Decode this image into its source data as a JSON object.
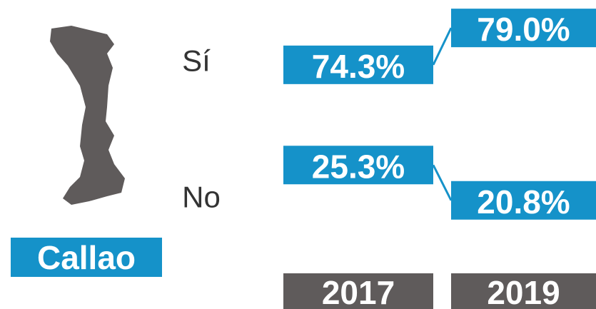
{
  "chart_data": {
    "type": "slope",
    "region": "Callao",
    "categories": [
      "2017",
      "2019"
    ],
    "color": "#1592c9",
    "year_color": "#5f5b5b",
    "series": [
      {
        "name": "Sí",
        "values": [
          74.3,
          79.0
        ],
        "value_labels": [
          "74.3%",
          "79.0%"
        ]
      },
      {
        "name": "No",
        "values": [
          25.3,
          20.8
        ],
        "value_labels": [
          "25.3%",
          "20.8%"
        ]
      }
    ]
  }
}
